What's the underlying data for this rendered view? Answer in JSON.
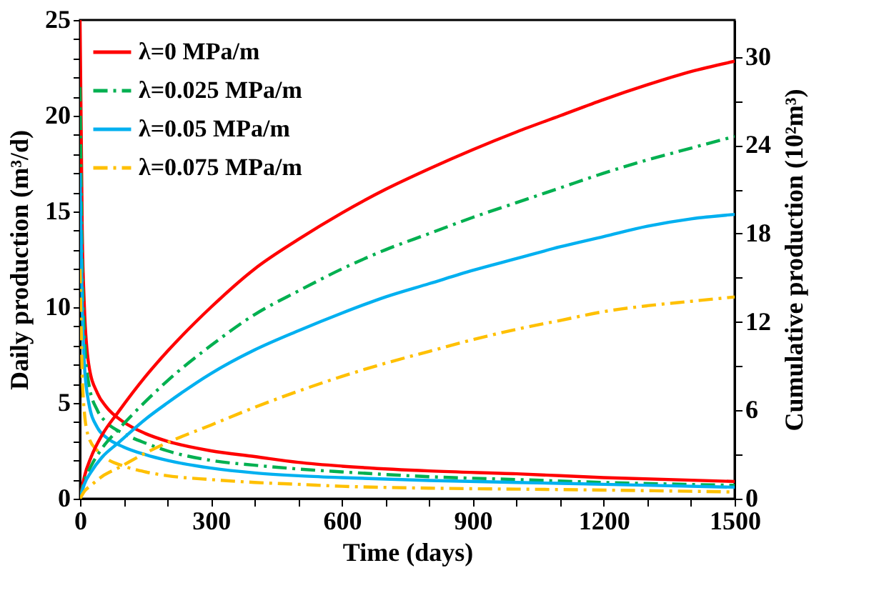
{
  "chart_data": {
    "type": "line",
    "xlabel": "Time (days)",
    "ylabel": "Daily production (m³/d)",
    "y2label": "Cumulative production (10²m³)",
    "xlim": [
      0,
      1500
    ],
    "ylim": [
      0,
      25
    ],
    "y2lim": [
      0,
      32.5
    ],
    "xticks": [
      0,
      {
        "value": 100,
        "label": null
      },
      {
        "value": 200,
        "label": null
      },
      300,
      {
        "value": 400,
        "label": null
      },
      {
        "value": 500,
        "label": null
      },
      600,
      {
        "value": 700,
        "label": null
      },
      {
        "value": 800,
        "label": null
      },
      900,
      {
        "value": 1000,
        "label": null
      },
      {
        "value": 1100,
        "label": null
      },
      1200,
      {
        "value": 1300,
        "label": null
      },
      {
        "value": 1400,
        "label": null
      },
      1500
    ],
    "yticks": [
      0,
      {
        "value": 1,
        "label": null
      },
      {
        "value": 2,
        "label": null
      },
      {
        "value": 3,
        "label": null
      },
      {
        "value": 4,
        "label": null
      },
      5,
      {
        "value": 6,
        "label": null
      },
      {
        "value": 7,
        "label": null
      },
      {
        "value": 8,
        "label": null
      },
      {
        "value": 9,
        "label": null
      },
      10,
      {
        "value": 11,
        "label": null
      },
      {
        "value": 12,
        "label": null
      },
      {
        "value": 13,
        "label": null
      },
      {
        "value": 14,
        "label": null
      },
      15,
      {
        "value": 16,
        "label": null
      },
      {
        "value": 17,
        "label": null
      },
      {
        "value": 18,
        "label": null
      },
      {
        "value": 19,
        "label": null
      },
      20,
      {
        "value": 21,
        "label": null
      },
      {
        "value": 22,
        "label": null
      },
      {
        "value": 23,
        "label": null
      },
      {
        "value": 24,
        "label": null
      },
      25
    ],
    "y2ticks": [
      0,
      {
        "value": 3,
        "label": null
      },
      6,
      {
        "value": 9,
        "label": null
      },
      12,
      {
        "value": 15,
        "label": null
      },
      18,
      {
        "value": 21,
        "label": null
      },
      24,
      {
        "value": 27,
        "label": null
      },
      30
    ],
    "grid": false,
    "legend": "top left",
    "marker": "none",
    "series": [
      {
        "name": "λ=0 MPa/m",
        "color": "#ff0000",
        "line_style": "solid",
        "x": [
          0,
          5,
          10,
          20,
          40,
          60,
          100,
          150,
          200,
          300,
          400,
          500,
          600,
          800,
          1000,
          1200,
          1500
        ],
        "values": [
          25,
          14,
          10,
          7,
          5.5,
          4.8,
          4.0,
          3.4,
          3.0,
          2.5,
          2.2,
          1.9,
          1.7,
          1.45,
          1.3,
          1.1,
          0.9
        ]
      },
      {
        "name": "λ=0.025 MPa/m",
        "color": "#00b050",
        "line_style": "dashed",
        "x": [
          0,
          5,
          10,
          20,
          40,
          60,
          100,
          150,
          200,
          300,
          400,
          500,
          600,
          800,
          1000,
          1200,
          1500
        ],
        "values": [
          21.5,
          12,
          8.5,
          6,
          4.6,
          4.0,
          3.4,
          2.9,
          2.5,
          2.0,
          1.75,
          1.55,
          1.4,
          1.15,
          1.0,
          0.85,
          0.7
        ]
      },
      {
        "name": "λ=0.05 MPa/m",
        "color": "#00b0f0",
        "line_style": "solid",
        "x": [
          0,
          5,
          10,
          20,
          40,
          60,
          100,
          150,
          200,
          300,
          400,
          500,
          600,
          800,
          1000,
          1200,
          1500
        ],
        "values": [
          17,
          10,
          7,
          5,
          3.7,
          3.2,
          2.7,
          2.3,
          2.0,
          1.6,
          1.35,
          1.2,
          1.1,
          0.95,
          0.85,
          0.75,
          0.6
        ]
      },
      {
        "name": "λ=0.075 MPa/m",
        "color": "#ffc000",
        "line_style": "dashed",
        "x": [
          0,
          5,
          10,
          20,
          40,
          60,
          100,
          150,
          200,
          300,
          400,
          500,
          600,
          800,
          1000,
          1200,
          1500
        ],
        "values": [
          12,
          6.5,
          4.5,
          3.2,
          2.5,
          2.1,
          1.7,
          1.4,
          1.2,
          1.0,
          0.85,
          0.75,
          0.65,
          0.55,
          0.5,
          0.45,
          0.35
        ]
      },
      {
        "color": "#ff0000",
        "line_style": "solid",
        "axis": "y2",
        "x": [
          0,
          10,
          25,
          50,
          88,
          150,
          200,
          300,
          400,
          500,
          600,
          700,
          800,
          900,
          1000,
          1100,
          1200,
          1300,
          1400,
          1500
        ],
        "values": [
          0,
          1.5,
          2.8,
          4.3,
          5.9,
          8.3,
          10.0,
          13.0,
          15.6,
          17.6,
          19.4,
          21.0,
          22.4,
          23.7,
          24.9,
          26.0,
          27.1,
          28.1,
          29.0,
          29.7
        ]
      },
      {
        "color": "#00b050",
        "line_style": "dashed",
        "axis": "y2",
        "x": [
          0,
          10,
          25,
          50,
          88,
          150,
          200,
          300,
          400,
          500,
          600,
          700,
          800,
          900,
          1000,
          1100,
          1200,
          1300,
          1400,
          1500
        ],
        "values": [
          0,
          1.2,
          2.2,
          3.4,
          4.7,
          6.6,
          8.0,
          10.4,
          12.5,
          14.1,
          15.6,
          16.9,
          18.0,
          19.1,
          20.1,
          21.1,
          22.1,
          23.0,
          23.8,
          24.6
        ]
      },
      {
        "color": "#00b0f0",
        "line_style": "solid",
        "axis": "y2",
        "x": [
          0,
          10,
          25,
          50,
          88,
          150,
          200,
          300,
          400,
          500,
          600,
          700,
          800,
          900,
          1000,
          1100,
          1200,
          1300,
          1400,
          1500
        ],
        "values": [
          0,
          1.0,
          1.8,
          2.8,
          3.8,
          5.4,
          6.5,
          8.5,
          10.1,
          11.4,
          12.6,
          13.7,
          14.6,
          15.5,
          16.3,
          17.1,
          17.8,
          18.5,
          19.0,
          19.3
        ]
      },
      {
        "color": "#ffc000",
        "line_style": "dashed",
        "axis": "y2",
        "x": [
          0,
          10,
          25,
          50,
          88,
          150,
          200,
          300,
          400,
          500,
          600,
          700,
          800,
          900,
          1000,
          1100,
          1200,
          1300,
          1400,
          1500
        ],
        "values": [
          0,
          0.5,
          0.9,
          1.5,
          2.1,
          3.1,
          3.8,
          5.0,
          6.2,
          7.3,
          8.3,
          9.2,
          10.0,
          10.8,
          11.5,
          12.1,
          12.7,
          13.1,
          13.4,
          13.7
        ]
      }
    ]
  }
}
